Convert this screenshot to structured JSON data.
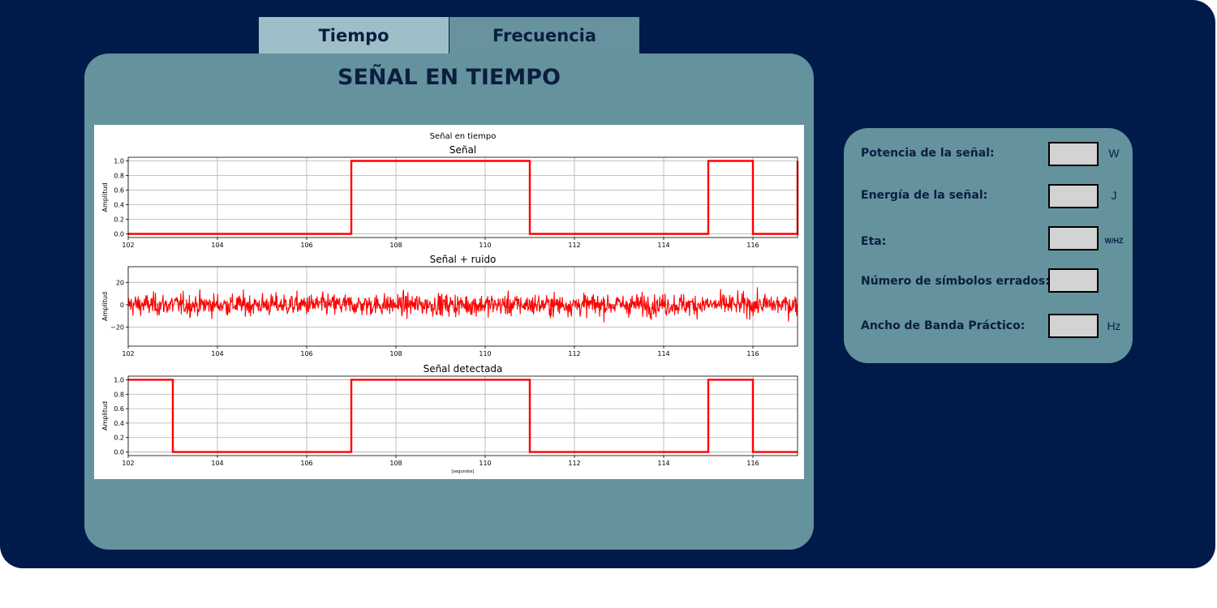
{
  "tabs": [
    {
      "label": "Tiempo",
      "active": true
    },
    {
      "label": "Frecuencia",
      "active": false
    }
  ],
  "main": {
    "title": "SEÑAL EN TIEMPO"
  },
  "metrics": {
    "potencia": {
      "label": "Potencia de la señal:",
      "value": "",
      "unit": "W"
    },
    "energia": {
      "label": "Energía de la señal:",
      "value": "",
      "unit": "J"
    },
    "eta": {
      "label": "Eta:",
      "value": "",
      "unit": "W/HZ"
    },
    "simbolos": {
      "label": "Número de símbolos errados:",
      "value": ""
    },
    "ancho_banda": {
      "label": "Ancho de Banda Práctico:",
      "value": "",
      "unit": "Hz"
    }
  },
  "colors": {
    "background": "#001a4a",
    "panel": "#64929d",
    "tab_active": "#9fbfc8",
    "tab_inactive": "#66939e",
    "line": "#ff0000"
  },
  "chart_data": {
    "suptitle": "Señal en tiempo",
    "xlabel": "[segundos]",
    "subplots": [
      {
        "type": "line",
        "title": "Señal",
        "ylabel": "Amplitud",
        "xlim": [
          102,
          117
        ],
        "ylim": [
          -0.05,
          1.05
        ],
        "xticks": [
          102,
          104,
          106,
          108,
          110,
          112,
          114,
          116
        ],
        "yticks": [
          0.0,
          0.2,
          0.4,
          0.6,
          0.8,
          1.0
        ],
        "ytick_labels": [
          "0.0",
          "0.2",
          "0.4",
          "0.6",
          "0.8",
          "1.0"
        ],
        "grid": true,
        "x": [
          102,
          107,
          107,
          111,
          111,
          115,
          115,
          116,
          116,
          117,
          117
        ],
        "y": [
          0,
          0,
          1,
          1,
          0,
          0,
          1,
          1,
          0,
          0,
          1
        ]
      },
      {
        "type": "line",
        "title": "Señal + ruido",
        "ylabel": "Amplitud",
        "xlim": [
          102,
          117
        ],
        "ylim": [
          -37,
          34
        ],
        "xticks": [
          102,
          104,
          106,
          108,
          110,
          112,
          114,
          116
        ],
        "yticks": [
          -20,
          0,
          20
        ],
        "ytick_labels": [
          "−20",
          "0",
          "20"
        ],
        "grid": true,
        "noise": {
          "mean": 0,
          "typical_range": [
            -15,
            15
          ],
          "peak_range": [
            -23,
            23
          ]
        }
      },
      {
        "type": "line",
        "title": "Señal detectada",
        "ylabel": "Amplitud",
        "xlim": [
          102,
          117
        ],
        "ylim": [
          -0.05,
          1.05
        ],
        "xticks": [
          102,
          104,
          106,
          108,
          110,
          112,
          114,
          116
        ],
        "yticks": [
          0.0,
          0.2,
          0.4,
          0.6,
          0.8,
          1.0
        ],
        "ytick_labels": [
          "0.0",
          "0.2",
          "0.4",
          "0.6",
          "0.8",
          "1.0"
        ],
        "grid": true,
        "x": [
          102,
          103,
          103,
          107,
          107,
          111,
          111,
          115,
          115,
          116,
          116,
          117
        ],
        "y": [
          1,
          1,
          0,
          0,
          1,
          1,
          0,
          0,
          1,
          1,
          0,
          0
        ]
      }
    ]
  }
}
